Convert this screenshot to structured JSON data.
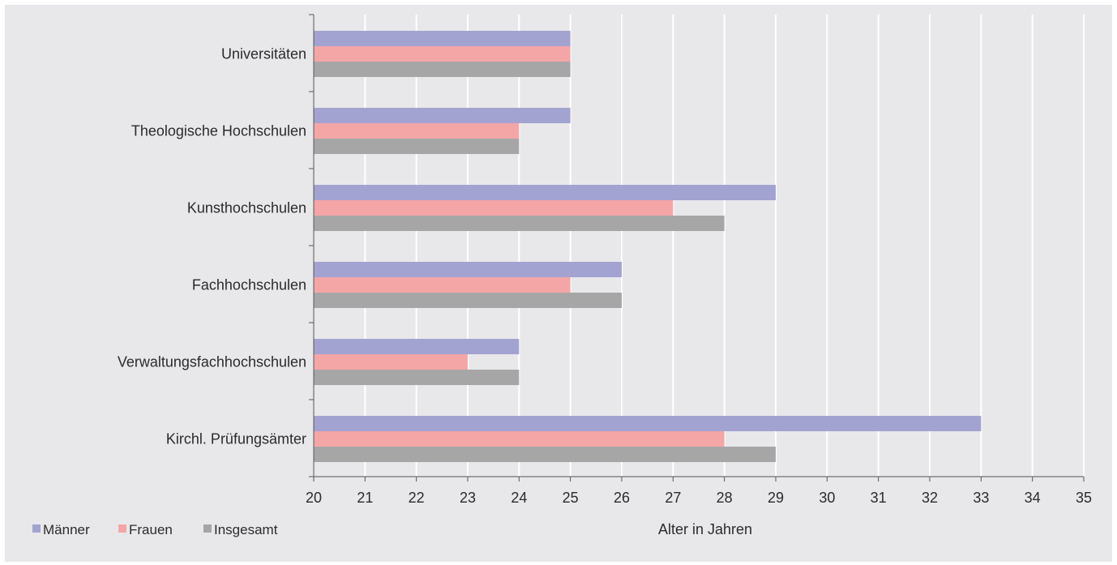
{
  "chart_data": {
    "type": "bar",
    "orientation": "horizontal",
    "categories": [
      "Universitäten",
      "Theologische Hochschulen",
      "Kunsthochschulen",
      "Fachhochschulen",
      "Verwaltungsfachhochschulen",
      "Kirchl. Prüfungsämter"
    ],
    "series": [
      {
        "name": "Männer",
        "color": "#a3a3d1",
        "values": [
          25,
          25,
          29,
          26,
          24,
          33
        ]
      },
      {
        "name": "Frauen",
        "color": "#f4a6a6",
        "values": [
          25,
          24,
          27,
          25,
          23,
          28
        ]
      },
      {
        "name": "Insgesamt",
        "color": "#a6a6a6",
        "values": [
          25,
          24,
          28,
          26,
          24,
          29
        ]
      }
    ],
    "xlabel": "Alter in Jahren",
    "ylabel": "",
    "xlim": [
      20,
      35
    ],
    "ticks": [
      "20",
      "21",
      "22",
      "23",
      "24",
      "25",
      "26",
      "27",
      "28",
      "29",
      "30",
      "31",
      "32",
      "33",
      "34",
      "35"
    ],
    "grid": true,
    "legend": "bottom-left",
    "colors": {
      "background": "#e8e8eb",
      "grid": "#ffffff",
      "axis": "#555555"
    }
  }
}
